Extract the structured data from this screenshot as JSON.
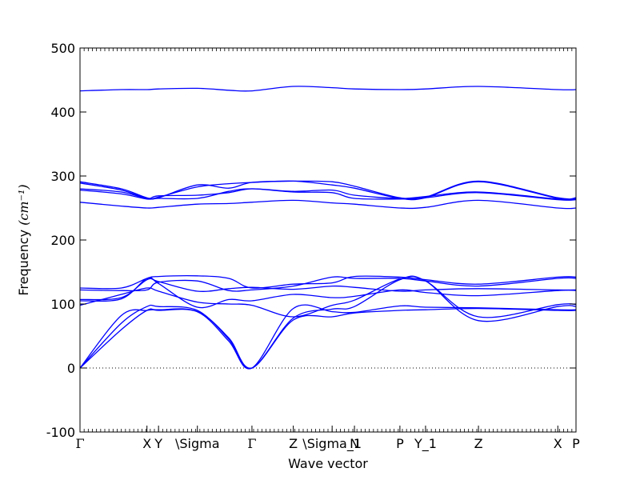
{
  "chart_data": {
    "type": "line",
    "xlabel": "Wave vector",
    "ylabel": "Frequency",
    "ylabel_unit": "(cm⁻¹)",
    "ylim": [
      -100,
      500
    ],
    "yticks": [
      -100,
      0,
      100,
      200,
      300,
      400,
      500
    ],
    "xlim": [
      0,
      6.0
    ],
    "xticks": [
      {
        "x": 0.0,
        "label": "Γ"
      },
      {
        "x": 0.81,
        "label": "X"
      },
      {
        "x": 0.95,
        "label": "Y"
      },
      {
        "x": 1.42,
        "label": "\\Sigma"
      },
      {
        "x": 2.08,
        "label": "Γ"
      },
      {
        "x": 2.58,
        "label": "Z"
      },
      {
        "x": 3.05,
        "label": "\\Sigma_1"
      },
      {
        "x": 3.32,
        "label": "N"
      },
      {
        "x": 3.87,
        "label": "P"
      },
      {
        "x": 4.18,
        "label": "Y_1"
      },
      {
        "x": 4.82,
        "label": "Z"
      },
      {
        "x": 5.78,
        "label": "X"
      },
      {
        "x": 6.0,
        "label": "P"
      }
    ],
    "zero_line": true,
    "line_color": "#0000ff",
    "series": [
      {
        "x": [
          0,
          0.5,
          0.81,
          0.95,
          1.42,
          1.8,
          2.08,
          2.58,
          3.05,
          3.32,
          3.87,
          4.18,
          4.82,
          5.78,
          6.0
        ],
        "values": [
          433,
          435,
          435,
          436,
          437,
          434,
          433,
          440,
          438,
          436,
          435,
          436,
          440,
          435,
          435
        ]
      },
      {
        "x": [
          0,
          0.5,
          0.81,
          0.95,
          1.42,
          1.8,
          2.08,
          2.58,
          3.05,
          3.32,
          3.87,
          4.18,
          4.82,
          5.78,
          6.0
        ],
        "values": [
          291,
          280,
          266,
          266,
          286,
          281,
          290,
          292,
          291,
          284,
          266,
          267,
          292,
          266,
          266
        ]
      },
      {
        "x": [
          0,
          0.5,
          0.81,
          0.95,
          1.42,
          1.8,
          2.08,
          2.58,
          3.05,
          3.32,
          3.87,
          4.18,
          4.82,
          5.78,
          6.0
        ],
        "values": [
          289,
          278,
          265,
          267,
          283,
          288,
          290,
          292,
          286,
          281,
          265,
          266,
          291,
          265,
          265
        ]
      },
      {
        "x": [
          0,
          0.5,
          0.81,
          0.95,
          1.42,
          1.8,
          2.08,
          2.58,
          3.05,
          3.32,
          3.87,
          4.18,
          4.82,
          5.78,
          6.0
        ],
        "values": [
          280,
          275,
          265,
          269,
          270,
          274,
          280,
          276,
          278,
          270,
          265,
          268,
          275,
          264,
          264
        ]
      },
      {
        "x": [
          0,
          0.5,
          0.81,
          0.95,
          1.42,
          1.8,
          2.08,
          2.58,
          3.05,
          3.32,
          3.87,
          4.18,
          4.82,
          5.78,
          6.0
        ],
        "values": [
          278,
          272,
          264,
          265,
          265,
          276,
          280,
          275,
          274,
          265,
          264,
          266,
          274,
          263,
          263
        ]
      },
      {
        "x": [
          0,
          0.5,
          0.81,
          0.95,
          1.42,
          1.8,
          2.08,
          2.58,
          3.05,
          3.32,
          3.87,
          4.18,
          4.82,
          5.78,
          6.0
        ],
        "values": [
          259,
          253,
          250,
          251,
          256,
          257,
          259,
          262,
          258,
          256,
          250,
          251,
          262,
          250,
          250
        ]
      },
      {
        "x": [
          0,
          0.5,
          0.81,
          0.95,
          1.42,
          1.8,
          2.08,
          2.58,
          3.05,
          3.32,
          3.87,
          4.18,
          4.82,
          5.78,
          6.0
        ],
        "values": [
          125,
          125,
          140,
          143,
          144,
          140,
          125,
          131,
          133,
          143,
          142,
          138,
          131,
          142,
          142
        ]
      },
      {
        "x": [
          0,
          0.5,
          0.81,
          0.95,
          1.42,
          1.8,
          2.08,
          2.58,
          3.05,
          3.32,
          3.87,
          4.18,
          4.82,
          5.78,
          6.0
        ],
        "values": [
          122,
          121,
          122,
          134,
          136,
          121,
          122,
          128,
          142,
          140,
          140,
          136,
          128,
          140,
          140
        ]
      },
      {
        "x": [
          0,
          0.5,
          0.81,
          0.95,
          1.42,
          1.8,
          2.08,
          2.58,
          3.05,
          3.32,
          3.87,
          4.18,
          4.82,
          5.78,
          6.0
        ],
        "values": [
          107,
          110,
          138,
          135,
          120,
          124,
          126,
          123,
          128,
          126,
          120,
          122,
          124,
          122,
          122
        ]
      },
      {
        "x": [
          0,
          0.5,
          0.81,
          0.95,
          1.42,
          1.8,
          2.08,
          2.58,
          3.05,
          3.32,
          3.87,
          4.18,
          4.82,
          5.78,
          6.0
        ],
        "values": [
          105,
          108,
          140,
          132,
          95,
          107,
          105,
          115,
          110,
          112,
          122,
          118,
          113,
          121,
          121
        ]
      },
      {
        "x": [
          0,
          0.5,
          0.81,
          0.95,
          1.42,
          1.8,
          2.08,
          2.58,
          3.05,
          3.32,
          3.87,
          4.18,
          4.82,
          5.78,
          6.0
        ],
        "values": [
          98,
          115,
          125,
          120,
          103,
          100,
          98,
          80,
          98,
          106,
          139,
          136,
          80,
          99,
          99
        ]
      },
      {
        "x": [
          0,
          0.5,
          0.81,
          0.95,
          1.42,
          1.8,
          2.08,
          2.58,
          3.05,
          3.32,
          3.87,
          4.18,
          4.82,
          5.78,
          6.0
        ],
        "values": [
          0,
          70,
          96,
          96,
          90,
          45,
          0,
          78,
          92,
          96,
          138,
          136,
          74,
          96,
          96
        ]
      },
      {
        "x": [
          0,
          0.5,
          0.81,
          0.95,
          1.42,
          1.8,
          2.08,
          2.58,
          3.05,
          3.32,
          3.87,
          4.18,
          4.82,
          5.78,
          6.0
        ],
        "values": [
          0,
          82,
          90,
          91,
          88,
          42,
          0,
          93,
          88,
          87,
          97,
          95,
          94,
          91,
          91
        ]
      },
      {
        "x": [
          0,
          0.5,
          0.81,
          0.95,
          1.42,
          1.8,
          2.08,
          2.58,
          3.05,
          3.32,
          3.87,
          4.18,
          4.82,
          5.78,
          6.0
        ],
        "values": [
          0,
          60,
          90,
          90,
          88,
          47,
          0,
          75,
          80,
          86,
          90,
          91,
          93,
          90,
          90
        ]
      }
    ]
  }
}
